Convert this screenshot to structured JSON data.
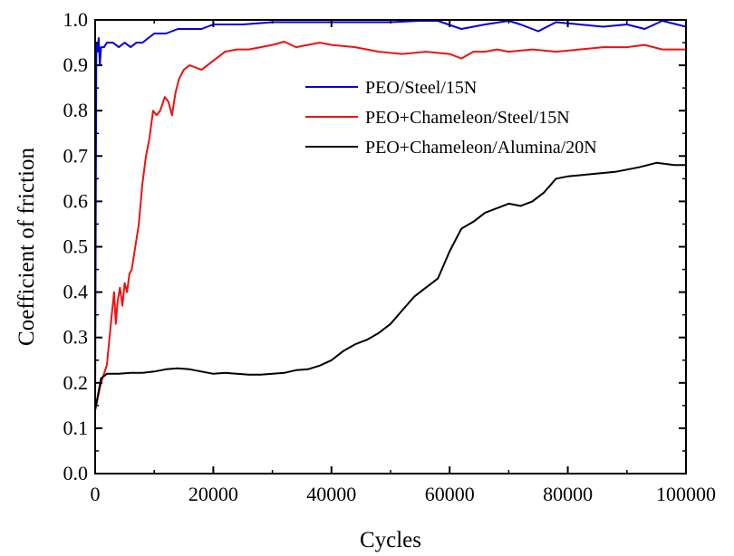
{
  "chart_data": {
    "type": "line",
    "xlabel": "Cycles",
    "ylabel": "Coefficient of friction",
    "xlim": [
      0,
      100000
    ],
    "ylim": [
      0.0,
      1.0
    ],
    "xticks": [
      0,
      20000,
      40000,
      60000,
      80000,
      100000
    ],
    "xtick_labels": [
      "0",
      "20000",
      "40000",
      "60000",
      "80000",
      "100000"
    ],
    "yticks": [
      0.0,
      0.1,
      0.2,
      0.3,
      0.4,
      0.5,
      0.6,
      0.7,
      0.8,
      0.9,
      1.0
    ],
    "ytick_labels": [
      "0.0",
      "0.1",
      "0.2",
      "0.3",
      "0.4",
      "0.5",
      "0.6",
      "0.7",
      "0.8",
      "0.9",
      "1.0"
    ],
    "grid": false,
    "legend_position": "upper-right",
    "series": [
      {
        "name": "PEO/Steel/15N",
        "color": "#0000dd",
        "x": [
          0,
          200,
          400,
          600,
          800,
          1000,
          1500,
          2000,
          3000,
          4000,
          5000,
          6000,
          7000,
          8000,
          9000,
          10000,
          12000,
          14000,
          16000,
          18000,
          20000,
          25000,
          30000,
          35000,
          40000,
          45000,
          50000,
          55000,
          58000,
          62000,
          66000,
          70000,
          72000,
          75000,
          78000,
          82000,
          86000,
          90000,
          93000,
          96000,
          100000
        ],
        "y": [
          0.15,
          0.95,
          0.93,
          0.96,
          0.9,
          0.94,
          0.94,
          0.95,
          0.95,
          0.94,
          0.95,
          0.94,
          0.95,
          0.95,
          0.96,
          0.97,
          0.97,
          0.98,
          0.98,
          0.98,
          0.99,
          0.99,
          0.995,
          0.995,
          0.995,
          0.995,
          0.995,
          0.998,
          0.998,
          0.98,
          0.99,
          0.998,
          0.99,
          0.975,
          0.995,
          0.99,
          0.985,
          0.99,
          0.98,
          0.998,
          0.985
        ]
      },
      {
        "name": "PEO+Chameleon/Steel/15N",
        "color": "#ee1111",
        "x": [
          0,
          1000,
          2000,
          2800,
          3200,
          3500,
          3800,
          4200,
          4600,
          5000,
          5400,
          5800,
          6200,
          6800,
          7400,
          8000,
          8600,
          9200,
          9800,
          10400,
          11000,
          11800,
          12400,
          13000,
          13600,
          14200,
          15000,
          16000,
          17000,
          18000,
          19000,
          20000,
          21000,
          22000,
          24000,
          26000,
          28000,
          30000,
          32000,
          34000,
          36000,
          38000,
          40000,
          44000,
          48000,
          52000,
          56000,
          60000,
          62000,
          64000,
          66000,
          68000,
          70000,
          74000,
          78000,
          82000,
          86000,
          90000,
          93000,
          96000,
          100000
        ],
        "y": [
          0.14,
          0.2,
          0.24,
          0.35,
          0.4,
          0.33,
          0.38,
          0.41,
          0.37,
          0.42,
          0.4,
          0.44,
          0.45,
          0.5,
          0.55,
          0.64,
          0.7,
          0.74,
          0.8,
          0.79,
          0.8,
          0.83,
          0.82,
          0.79,
          0.84,
          0.87,
          0.89,
          0.9,
          0.895,
          0.89,
          0.9,
          0.91,
          0.92,
          0.93,
          0.935,
          0.935,
          0.94,
          0.945,
          0.952,
          0.94,
          0.945,
          0.95,
          0.945,
          0.94,
          0.93,
          0.925,
          0.93,
          0.925,
          0.915,
          0.93,
          0.93,
          0.935,
          0.93,
          0.935,
          0.93,
          0.935,
          0.94,
          0.94,
          0.945,
          0.935,
          0.935
        ]
      },
      {
        "name": "PEO+Chameleon/Alumina/20N",
        "color": "#000000",
        "x": [
          0,
          1000,
          2000,
          4000,
          6000,
          8000,
          10000,
          12000,
          14000,
          16000,
          18000,
          20000,
          22000,
          24000,
          26000,
          28000,
          30000,
          32000,
          34000,
          36000,
          38000,
          40000,
          42000,
          44000,
          46000,
          48000,
          50000,
          52000,
          54000,
          56000,
          58000,
          60000,
          62000,
          64000,
          66000,
          68000,
          70000,
          72000,
          74000,
          76000,
          78000,
          80000,
          84000,
          88000,
          92000,
          95000,
          98000,
          100000
        ],
        "y": [
          0.14,
          0.21,
          0.22,
          0.22,
          0.222,
          0.222,
          0.225,
          0.23,
          0.232,
          0.23,
          0.225,
          0.22,
          0.222,
          0.22,
          0.218,
          0.218,
          0.22,
          0.222,
          0.228,
          0.23,
          0.238,
          0.25,
          0.27,
          0.285,
          0.295,
          0.31,
          0.33,
          0.36,
          0.39,
          0.41,
          0.43,
          0.49,
          0.54,
          0.555,
          0.575,
          0.585,
          0.595,
          0.59,
          0.6,
          0.62,
          0.65,
          0.655,
          0.66,
          0.665,
          0.675,
          0.685,
          0.68,
          0.68
        ]
      }
    ]
  }
}
